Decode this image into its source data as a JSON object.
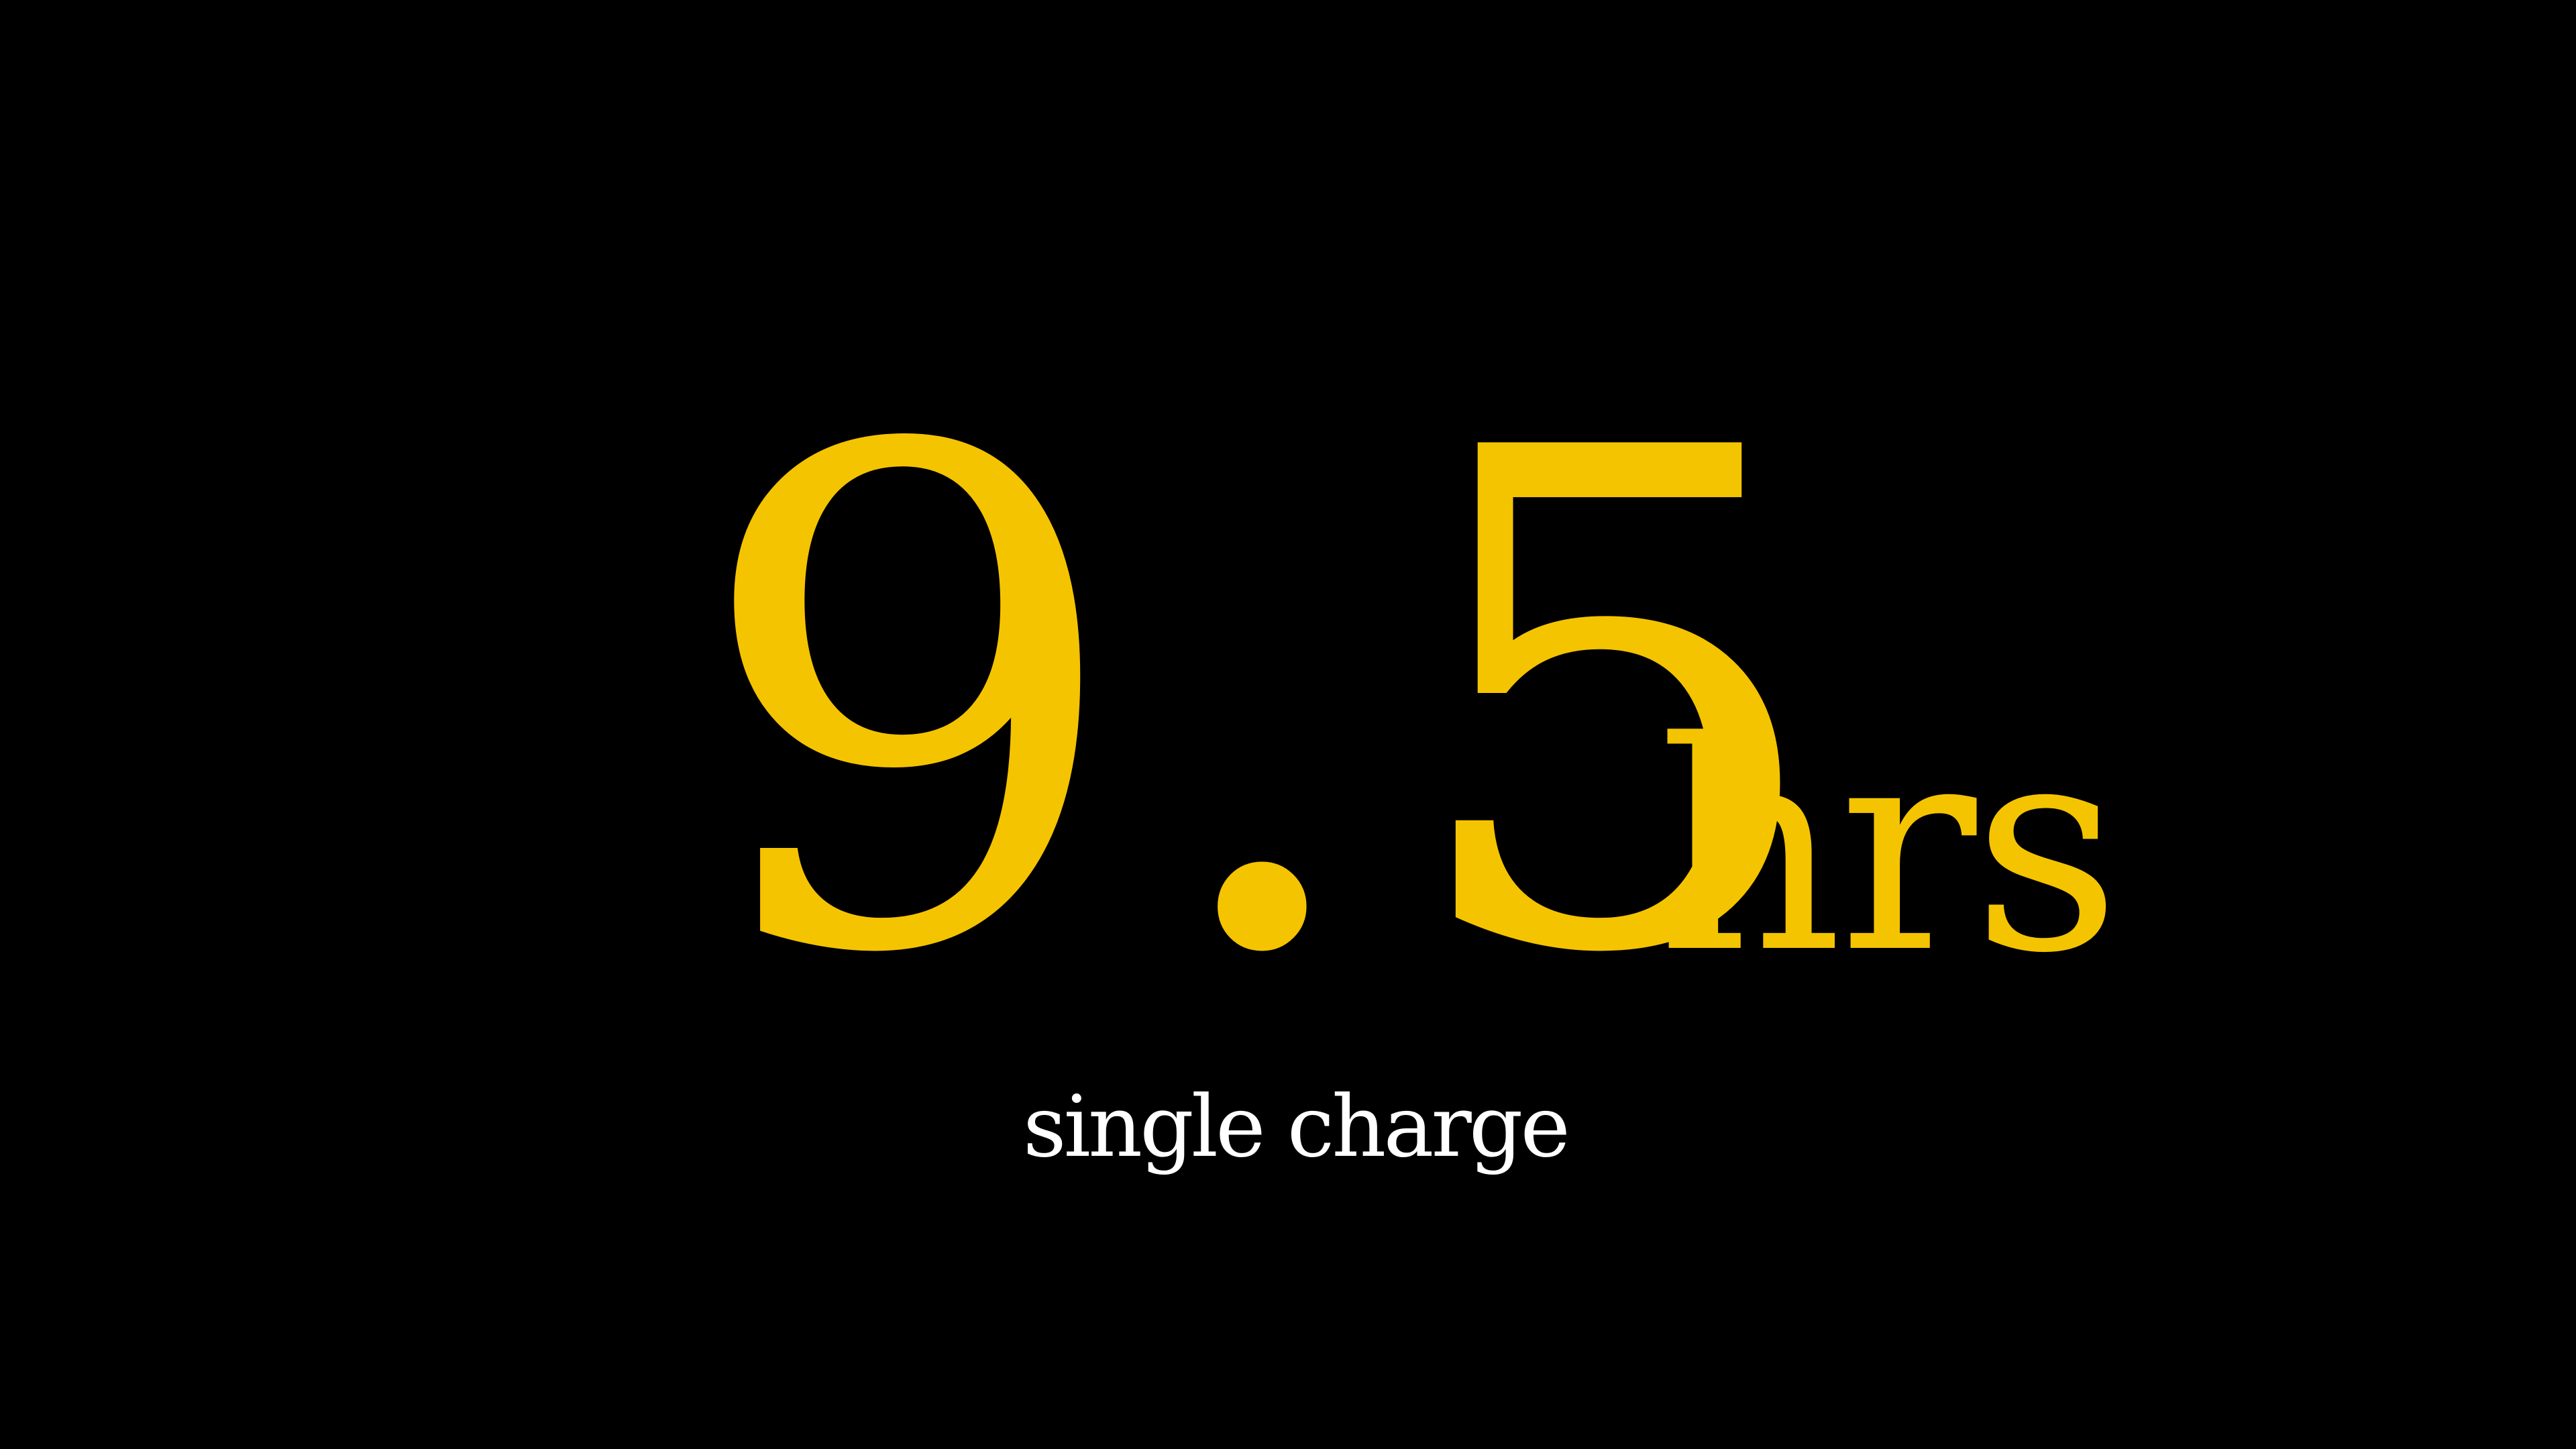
{
  "stat": {
    "value": "9.5",
    "unit": "hrs",
    "caption": "single charge"
  },
  "colors": {
    "background": "#000000",
    "accent": "#F5C400",
    "caption": "#FFFFFF"
  }
}
